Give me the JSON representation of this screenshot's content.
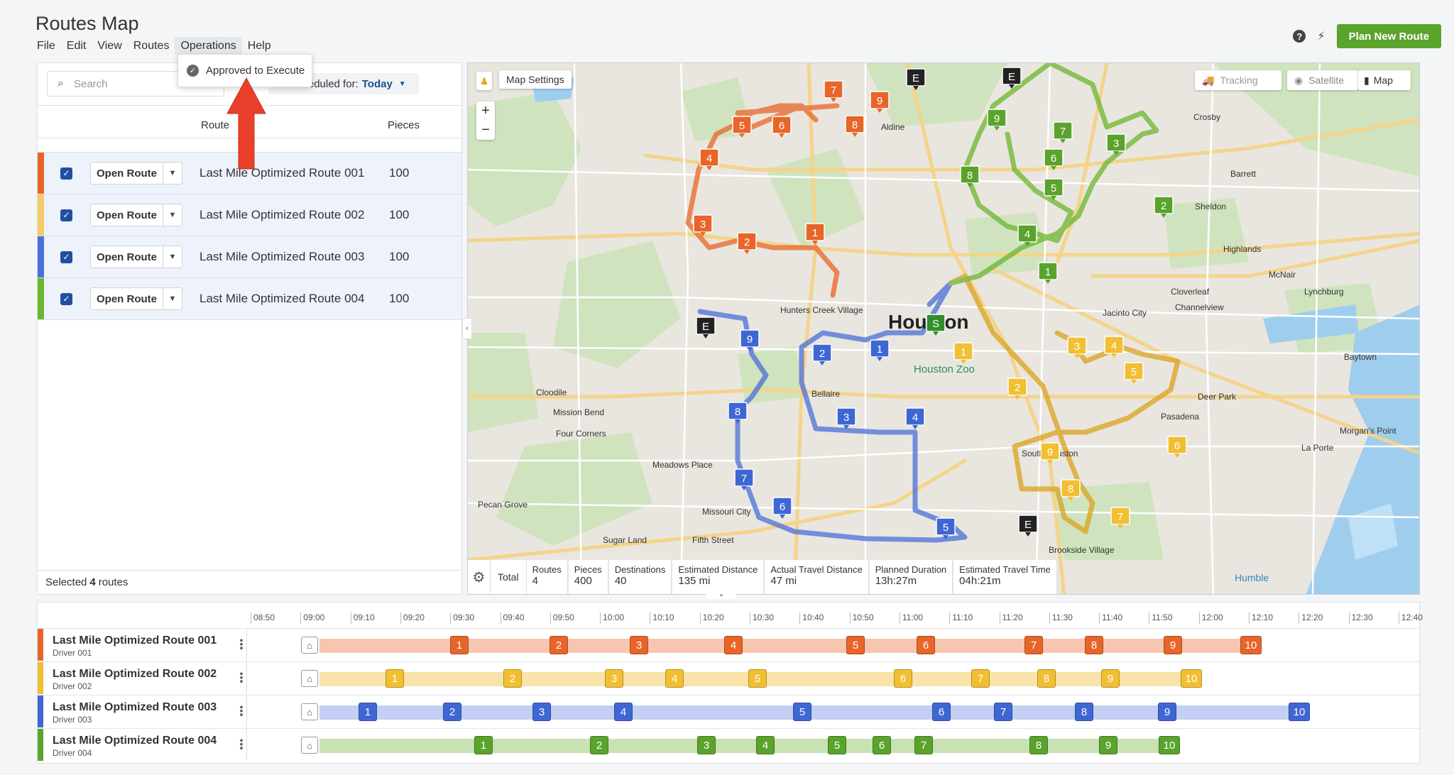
{
  "app": {
    "title": "Routes Map",
    "plan_button": "Plan New Route",
    "help_icon": "help-icon",
    "bolt_icon": "bolt-icon"
  },
  "menu": [
    "File",
    "Edit",
    "View",
    "Routes",
    "Operations",
    "Help"
  ],
  "dropdown": {
    "item": "Approved to Execute"
  },
  "left": {
    "search_placeholder": "Search",
    "scheduled_label": "Scheduled for:",
    "scheduled_value": "Today",
    "col_route": "Route",
    "col_pieces": "Pieces",
    "open_label": "Open Route",
    "routes": [
      {
        "name": "Last Mile Optimized Route 001",
        "pieces": "100",
        "color": "#e8652a"
      },
      {
        "name": "Last Mile Optimized Route 002",
        "pieces": "100",
        "color": "#f3cc6a"
      },
      {
        "name": "Last Mile Optimized Route 003",
        "pieces": "100",
        "color": "#4a6fd8"
      },
      {
        "name": "Last Mile Optimized Route 004",
        "pieces": "100",
        "color": "#6cb52e"
      }
    ],
    "footer_prefix": "Selected",
    "footer_count": "4",
    "footer_suffix": "routes"
  },
  "map": {
    "settings_label": "Map Settings",
    "tracking": "Tracking",
    "satellite": "Satellite",
    "map": "Map",
    "city": "Houston",
    "zoo": "Houston Zoo",
    "labels": [
      "Aldine",
      "Crosby",
      "Sheldon",
      "Barrett",
      "Highlands",
      "McNair",
      "Cloverleaf",
      "Channelview",
      "Jacinto City",
      "Lynchburg",
      "Baytown",
      "Deer Park",
      "Pasadena",
      "La Porte",
      "Morgan's Point",
      "Hunters Creek Village",
      "Bellaire",
      "Cloodile",
      "Mission Bend",
      "Four Corners",
      "Meadows Place",
      "Pecan Grove",
      "Missouri City",
      "Sugar Land",
      "Fifth Street",
      "Brookside Village",
      "South Houston",
      "Humble"
    ],
    "totals": {
      "label": "Total",
      "routes_l": "Routes",
      "routes_v": "4",
      "pieces_l": "Pieces",
      "pieces_v": "400",
      "dest_l": "Destinations",
      "dest_v": "40",
      "ed_l": "Estimated Distance",
      "ed_v": "135 mi",
      "atd_l": "Actual Travel Distance",
      "atd_v": "47 mi",
      "pd_l": "Planned Duration",
      "pd_v": "13h:27m",
      "ett_l": "Estimated Travel Time",
      "ett_v": "04h:21m"
    }
  },
  "timeline": {
    "ticks": [
      "08:50",
      "09:00",
      "09:10",
      "09:20",
      "09:30",
      "09:40",
      "09:50",
      "10:00",
      "10:10",
      "10:20",
      "10:30",
      "10:40",
      "10:50",
      "11:00",
      "11:10",
      "11:20",
      "11:30",
      "11:40",
      "11:50",
      "12:00",
      "12:10",
      "12:20",
      "12:30",
      "12:40"
    ],
    "rows": [
      {
        "name": "Last Mile Optimized Route 001",
        "driver": "Driver 001",
        "color": "#e8652a",
        "track": "#f7c6b1",
        "end": 1770,
        "stops": [
          [
            "1",
            646
          ],
          [
            "2",
            786
          ],
          [
            "3",
            899
          ],
          [
            "4",
            1032
          ],
          [
            "5",
            1204
          ],
          [
            "6",
            1303
          ],
          [
            "7",
            1455
          ],
          [
            "8",
            1540
          ],
          [
            "9",
            1651
          ],
          [
            "10",
            1759
          ]
        ]
      },
      {
        "name": "Last Mile Optimized Route 002",
        "driver": "Driver 002",
        "color": "#f2bf33",
        "track": "#f8e3a9",
        "end": 1687,
        "stops": [
          [
            "1",
            555
          ],
          [
            "2",
            721
          ],
          [
            "3",
            864
          ],
          [
            "4",
            949
          ],
          [
            "5",
            1066
          ],
          [
            "6",
            1271
          ],
          [
            "7",
            1380
          ],
          [
            "8",
            1473
          ],
          [
            "9",
            1563
          ],
          [
            "10",
            1675
          ]
        ]
      },
      {
        "name": "Last Mile Optimized Route 003",
        "driver": "Driver 003",
        "color": "#3f67d4",
        "track": "#c3cff3",
        "end": 1838,
        "stops": [
          [
            "1",
            517
          ],
          [
            "2",
            636
          ],
          [
            "3",
            762
          ],
          [
            "4",
            877
          ],
          [
            "5",
            1129
          ],
          [
            "6",
            1325
          ],
          [
            "7",
            1412
          ],
          [
            "8",
            1526
          ],
          [
            "9",
            1643
          ],
          [
            "10",
            1827
          ]
        ]
      },
      {
        "name": "Last Mile Optimized Route 004",
        "driver": "Driver 004",
        "color": "#5aa32d",
        "track": "#c8e2b3",
        "end": 1656,
        "stops": [
          [
            "1",
            680
          ],
          [
            "2",
            843
          ],
          [
            "3",
            994
          ],
          [
            "4",
            1077
          ],
          [
            "5",
            1178
          ],
          [
            "6",
            1241
          ],
          [
            "7",
            1300
          ],
          [
            "8",
            1462
          ],
          [
            "9",
            1560
          ],
          [
            "10",
            1644
          ]
        ]
      }
    ]
  }
}
